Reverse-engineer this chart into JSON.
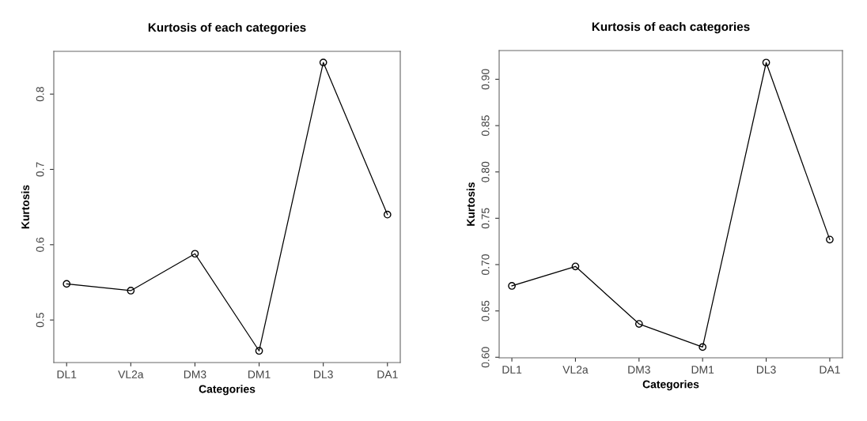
{
  "chart_data": [
    {
      "type": "line",
      "title": "Kurtosis of each categories",
      "xlabel": "Categories",
      "ylabel": "Kurtosis",
      "categories": [
        "DL1",
        "VL2a",
        "DM3",
        "DM1",
        "DL3",
        "DA1"
      ],
      "series": [
        {
          "color": "#000000",
          "values": [
            0.548,
            0.539,
            0.588,
            0.459,
            0.842,
            0.64
          ]
        }
      ],
      "ylim": [
        0.4435,
        0.8568
      ],
      "yticks": [
        0.5,
        0.6,
        0.7,
        0.8
      ],
      "marker": "circle",
      "line_style": "solid",
      "grid": false,
      "legend": false
    },
    {
      "type": "line",
      "title": "Kurtosis of each categories",
      "xlabel": "Categories",
      "ylabel": "Kurtosis",
      "categories": [
        "DL1",
        "VL2a",
        "DM3",
        "DM1",
        "DL3",
        "DA1"
      ],
      "series": [
        {
          "color": "#000000",
          "values": [
            0.677,
            0.698,
            0.636,
            0.611,
            0.918,
            0.727
          ]
        }
      ],
      "ylim": [
        0.5994,
        0.931
      ],
      "yticks": [
        {
          "value": 0.6,
          "label": "0.60"
        },
        {
          "value": 0.65,
          "label": "0.65"
        },
        {
          "value": 0.7,
          "label": "0.70"
        },
        {
          "value": 0.75,
          "label": "0.75"
        },
        {
          "value": 0.8,
          "label": "0.80"
        },
        {
          "value": 0.85,
          "label": "0.85"
        },
        {
          "value": 0.9,
          "label": "0.90"
        }
      ],
      "marker": "circle",
      "line_style": "solid",
      "grid": false,
      "legend": false
    }
  ]
}
